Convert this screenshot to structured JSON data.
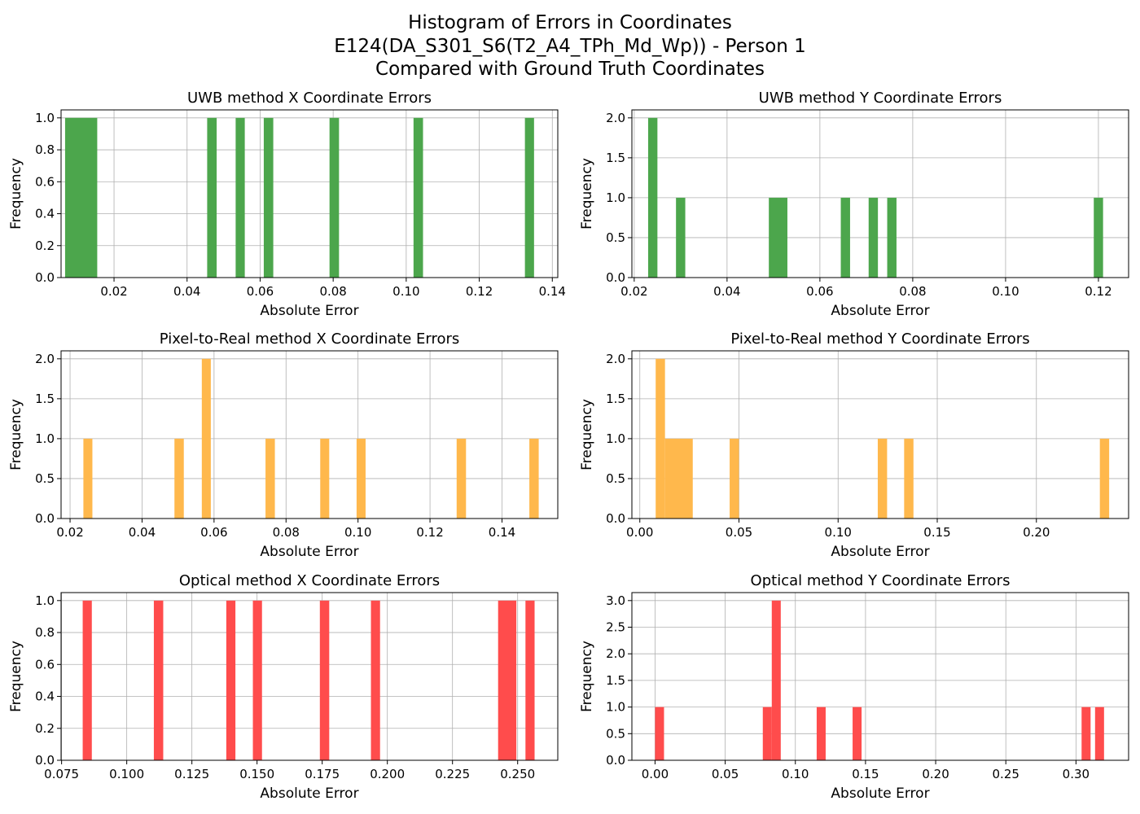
{
  "figure": {
    "title_lines": [
      "Histogram of Errors in Coordinates",
      "E124(DA_S301_S6(T2_A4_TPh_Md_Wp)) - Person 1",
      "Compared with Ground Truth Coordinates"
    ]
  },
  "chart_data": [
    {
      "type": "bar",
      "title": "UWB method X Coordinate Errors",
      "xlabel": "Absolute Error",
      "ylabel": "Frequency",
      "color": "#4ca64c",
      "xlim": [
        0.0055,
        0.1415
      ],
      "ylim": [
        0,
        1.05
      ],
      "xticks": [
        "0.02",
        "0.04",
        "0.06",
        "0.08",
        "0.10",
        "0.12",
        "0.14"
      ],
      "yticks": [
        "0.0",
        "0.2",
        "0.4",
        "0.6",
        "0.8",
        "1.0"
      ],
      "grid": true,
      "bars": [
        {
          "x0": 0.0066,
          "x1": 0.0154,
          "count": 1
        },
        {
          "x0": 0.0455,
          "x1": 0.0481,
          "count": 1
        },
        {
          "x0": 0.0533,
          "x1": 0.0558,
          "count": 1
        },
        {
          "x0": 0.061,
          "x1": 0.0636,
          "count": 1
        },
        {
          "x0": 0.079,
          "x1": 0.0816,
          "count": 1
        },
        {
          "x0": 0.102,
          "x1": 0.1046,
          "count": 1
        },
        {
          "x0": 0.1325,
          "x1": 0.135,
          "count": 1
        }
      ]
    },
    {
      "type": "bar",
      "title": "UWB method Y Coordinate Errors",
      "xlabel": "Absolute Error",
      "ylabel": "Frequency",
      "color": "#4ca64c",
      "xlim": [
        0.0195,
        0.1265
      ],
      "ylim": [
        0,
        2.1
      ],
      "xticks": [
        "0.02",
        "0.04",
        "0.06",
        "0.08",
        "0.10",
        "0.12"
      ],
      "yticks": [
        "0.0",
        "0.5",
        "1.0",
        "1.5",
        "2.0"
      ],
      "grid": true,
      "bars": [
        {
          "x0": 0.023,
          "x1": 0.025,
          "count": 2
        },
        {
          "x0": 0.029,
          "x1": 0.031,
          "count": 1
        },
        {
          "x0": 0.049,
          "x1": 0.053,
          "count": 1
        },
        {
          "x0": 0.0645,
          "x1": 0.0665,
          "count": 1
        },
        {
          "x0": 0.0705,
          "x1": 0.0725,
          "count": 1
        },
        {
          "x0": 0.0745,
          "x1": 0.0765,
          "count": 1
        },
        {
          "x0": 0.119,
          "x1": 0.121,
          "count": 1
        }
      ]
    },
    {
      "type": "bar",
      "title": "Pixel-to-Real method X Coordinate Errors",
      "xlabel": "Absolute Error",
      "ylabel": "Frequency",
      "color": "#ffb84c",
      "xlim": [
        0.0175,
        0.1555
      ],
      "ylim": [
        0,
        2.1
      ],
      "xticks": [
        "0.02",
        "0.04",
        "0.06",
        "0.08",
        "0.10",
        "0.12",
        "0.14"
      ],
      "yticks": [
        "0.0",
        "0.5",
        "1.0",
        "1.5",
        "2.0"
      ],
      "grid": true,
      "bars": [
        {
          "x0": 0.0237,
          "x1": 0.0262,
          "count": 1
        },
        {
          "x0": 0.049,
          "x1": 0.0516,
          "count": 1
        },
        {
          "x0": 0.0566,
          "x1": 0.0591,
          "count": 2
        },
        {
          "x0": 0.0743,
          "x1": 0.0769,
          "count": 1
        },
        {
          "x0": 0.0895,
          "x1": 0.092,
          "count": 1
        },
        {
          "x0": 0.0996,
          "x1": 0.1021,
          "count": 1
        },
        {
          "x0": 0.1274,
          "x1": 0.13,
          "count": 1
        },
        {
          "x0": 0.1476,
          "x1": 0.1502,
          "count": 1
        }
      ]
    },
    {
      "type": "bar",
      "title": "Pixel-to-Real method Y Coordinate Errors",
      "xlabel": "Absolute Error",
      "ylabel": "Frequency",
      "color": "#ffb84c",
      "xlim": [
        -0.004,
        0.2465
      ],
      "ylim": [
        0,
        2.1
      ],
      "xticks": [
        "0.00",
        "0.05",
        "0.10",
        "0.15",
        "0.20"
      ],
      "yticks": [
        "0.0",
        "0.5",
        "1.0",
        "1.5",
        "2.0"
      ],
      "grid": true,
      "bars": [
        {
          "x0": 0.008,
          "x1": 0.0127,
          "count": 2
        },
        {
          "x0": 0.0127,
          "x1": 0.0267,
          "count": 1
        },
        {
          "x0": 0.0453,
          "x1": 0.05,
          "count": 1
        },
        {
          "x0": 0.12,
          "x1": 0.1247,
          "count": 1
        },
        {
          "x0": 0.1333,
          "x1": 0.138,
          "count": 1
        },
        {
          "x0": 0.232,
          "x1": 0.2367,
          "count": 1
        }
      ]
    },
    {
      "type": "bar",
      "title": "Optical method X Coordinate Errors",
      "xlabel": "Absolute Error",
      "ylabel": "Frequency",
      "color": "#ff4c4c",
      "xlim": [
        0.0748,
        0.2654
      ],
      "ylim": [
        0,
        1.05
      ],
      "xticks": [
        "0.075",
        "0.100",
        "0.125",
        "0.150",
        "0.175",
        "0.200",
        "0.225",
        "0.250"
      ],
      "yticks": [
        "0.0",
        "0.2",
        "0.4",
        "0.6",
        "0.8",
        "1.0"
      ],
      "grid": true,
      "bars": [
        {
          "x0": 0.0831,
          "x1": 0.0866,
          "count": 1
        },
        {
          "x0": 0.1104,
          "x1": 0.114,
          "count": 1
        },
        {
          "x0": 0.1382,
          "x1": 0.1417,
          "count": 1
        },
        {
          "x0": 0.1484,
          "x1": 0.1519,
          "count": 1
        },
        {
          "x0": 0.1741,
          "x1": 0.1777,
          "count": 1
        },
        {
          "x0": 0.1937,
          "x1": 0.1972,
          "count": 1
        },
        {
          "x0": 0.2425,
          "x1": 0.2495,
          "count": 1
        },
        {
          "x0": 0.253,
          "x1": 0.2565,
          "count": 1
        }
      ]
    },
    {
      "type": "bar",
      "title": "Optical method Y Coordinate Errors",
      "xlabel": "Absolute Error",
      "ylabel": "Frequency",
      "color": "#ff4c4c",
      "xlim": [
        -0.0165,
        0.3375
      ],
      "ylim": [
        0,
        3.15
      ],
      "xticks": [
        "0.00",
        "0.05",
        "0.10",
        "0.15",
        "0.20",
        "0.25",
        "0.30"
      ],
      "yticks": [
        "0.0",
        "0.5",
        "1.0",
        "1.5",
        "2.0",
        "2.5",
        "3.0"
      ],
      "grid": true,
      "bars": [
        {
          "x0": 0.0,
          "x1": 0.0064,
          "count": 1
        },
        {
          "x0": 0.0768,
          "x1": 0.0832,
          "count": 1
        },
        {
          "x0": 0.0832,
          "x1": 0.0896,
          "count": 3
        },
        {
          "x0": 0.1152,
          "x1": 0.1216,
          "count": 1
        },
        {
          "x0": 0.1408,
          "x1": 0.1472,
          "count": 1
        },
        {
          "x0": 0.304,
          "x1": 0.3104,
          "count": 1
        },
        {
          "x0": 0.3136,
          "x1": 0.32,
          "count": 1
        }
      ]
    }
  ]
}
